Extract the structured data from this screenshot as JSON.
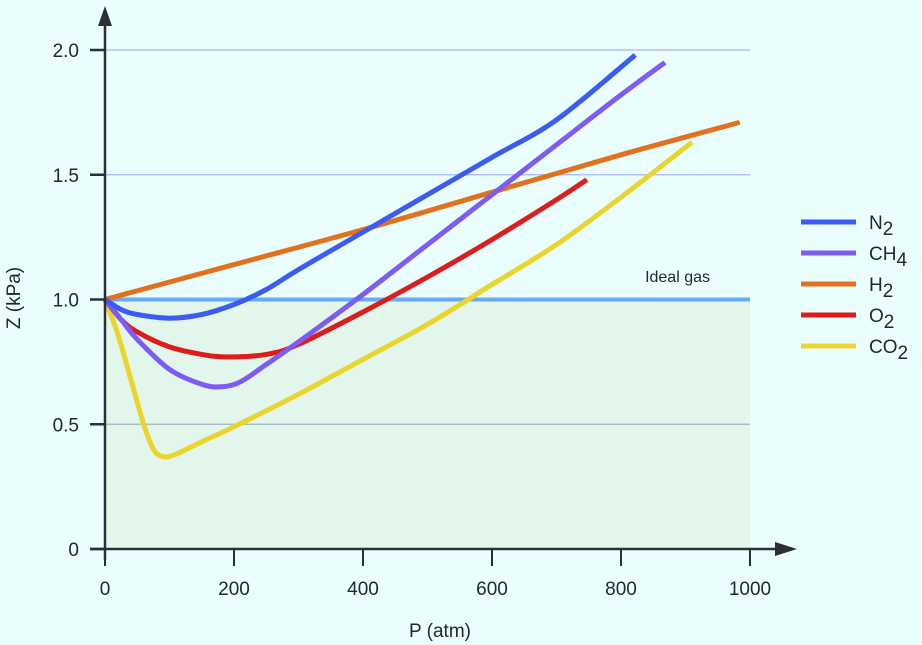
{
  "chart_data": {
    "type": "line",
    "title": "",
    "xlabel": "P (atm)",
    "ylabel": "Z (kPa)",
    "xlim": [
      0,
      1000
    ],
    "ylim": [
      0,
      2.0
    ],
    "x_ticks": [
      0,
      200,
      400,
      600,
      800,
      1000
    ],
    "x_tick_labels": [
      "0",
      "200",
      "400",
      "600",
      "800",
      "1000"
    ],
    "y_ticks": [
      0,
      0.5,
      1.0,
      1.5,
      2.0
    ],
    "y_tick_labels": [
      "0",
      "0.5",
      "1.0",
      "1.5",
      "2.0"
    ],
    "grid": "horizontal",
    "shaded_region": {
      "y_from": 0,
      "y_to": 1.0,
      "x_from": 0,
      "x_to": 1000,
      "color": "#e3f6ec"
    },
    "reference_line": {
      "label": "Ideal gas",
      "y": 1.0,
      "color": "#6aa9f5"
    },
    "legend_position": "right",
    "series": [
      {
        "name": "N2",
        "base": "N",
        "subscript": "2",
        "color": "#3a5cf5",
        "x": [
          0,
          25,
          50,
          100,
          150,
          200,
          250,
          300,
          400,
          500,
          600,
          700,
          822
        ],
        "y": [
          1.0,
          0.96,
          0.94,
          0.925,
          0.94,
          0.98,
          1.04,
          1.12,
          1.27,
          1.42,
          1.57,
          1.72,
          1.98
        ]
      },
      {
        "name": "CH4",
        "base": "CH",
        "subscript": "4",
        "color": "#7d5cf5",
        "x": [
          0,
          25,
          50,
          100,
          150,
          180,
          210,
          250,
          300,
          400,
          500,
          600,
          700,
          800,
          868
        ],
        "y": [
          1.0,
          0.92,
          0.84,
          0.72,
          0.66,
          0.65,
          0.67,
          0.74,
          0.83,
          1.02,
          1.22,
          1.42,
          1.62,
          1.82,
          1.95
        ]
      },
      {
        "name": "H2",
        "base": "H",
        "subscript": "2",
        "color": "#e2711d",
        "x": [
          0,
          200,
          400,
          600,
          800,
          984
        ],
        "y": [
          1.0,
          1.14,
          1.28,
          1.43,
          1.58,
          1.71
        ]
      },
      {
        "name": "O2",
        "base": "O",
        "subscript": "2",
        "color": "#dd1c1c",
        "x": [
          0,
          25,
          50,
          100,
          150,
          190,
          250,
          300,
          400,
          500,
          600,
          700,
          747
        ],
        "y": [
          1.0,
          0.92,
          0.87,
          0.81,
          0.78,
          0.77,
          0.78,
          0.82,
          0.95,
          1.09,
          1.24,
          1.4,
          1.48
        ]
      },
      {
        "name": "CO2",
        "base": "CO",
        "subscript": "2",
        "color": "#e9d52c",
        "x": [
          0,
          20,
          40,
          60,
          75,
          90,
          110,
          150,
          200,
          300,
          400,
          500,
          600,
          700,
          800,
          910
        ],
        "y": [
          1.0,
          0.86,
          0.68,
          0.5,
          0.4,
          0.37,
          0.38,
          0.43,
          0.49,
          0.62,
          0.76,
          0.9,
          1.06,
          1.22,
          1.41,
          1.63
        ]
      }
    ]
  }
}
